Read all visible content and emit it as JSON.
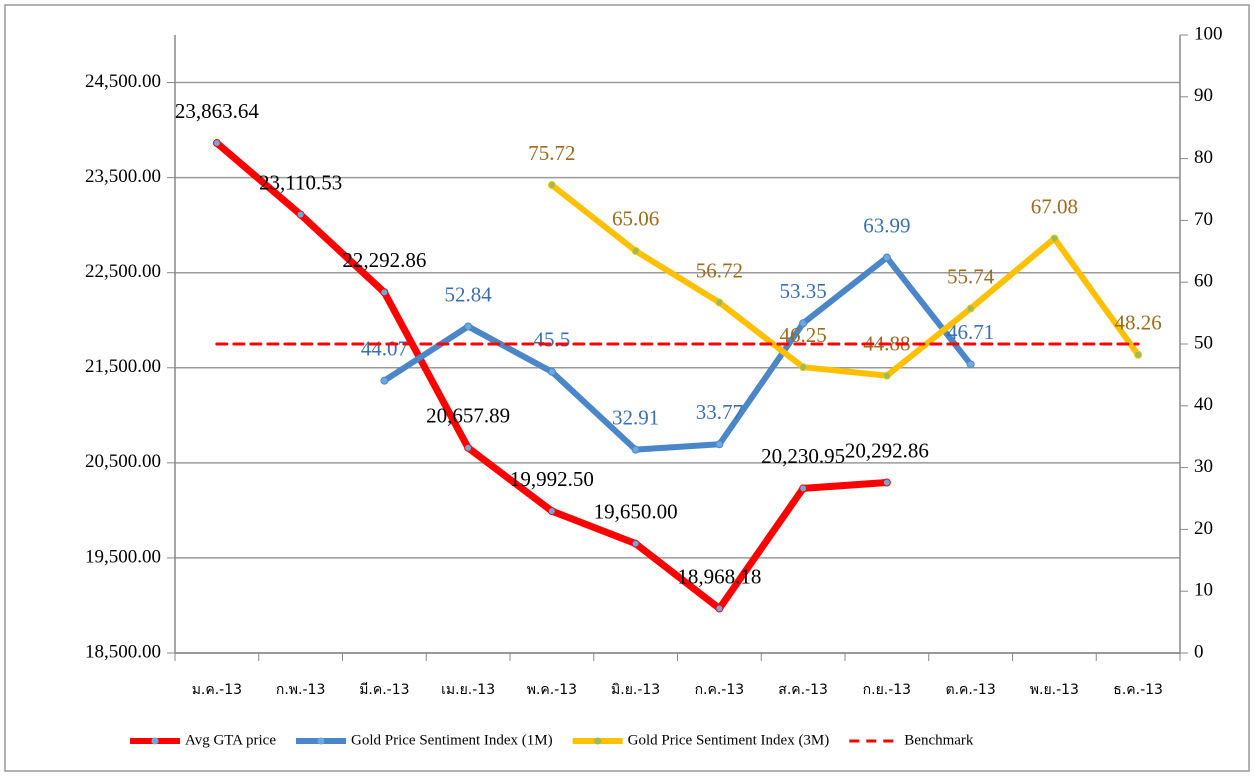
{
  "chart_data": {
    "type": "line",
    "categories": [
      "ม.ค.-13",
      "ก.พ.-13",
      "มี.ค.-13",
      "เม.ย.-13",
      "พ.ค.-13",
      "มิ.ย.-13",
      "ก.ค.-13",
      "ส.ค.-13",
      "ก.ย.-13",
      "ต.ค.-13",
      "พ.ย.-13",
      "ธ.ค.-13"
    ],
    "series": [
      {
        "name": "Avg GTA price",
        "color": "#ff0000",
        "label_color": "#000000",
        "values": [
          23863.64,
          23110.53,
          22292.86,
          20657.89,
          19992.5,
          19650.0,
          18968.18,
          20230.95,
          20292.86,
          null,
          null,
          null
        ],
        "value_labels": [
          "23,863.64",
          "23,110.53",
          "22,292.86",
          "20,657.89",
          "19,992.50",
          "19,650.00",
          "18,968.18",
          "20,230.95",
          "20,292.86",
          null,
          null,
          null
        ]
      },
      {
        "name": "Gold Price Sentiment Index (1M)",
        "color": "#4a86c8",
        "label_color": "#3a6fb5",
        "axis": "y2",
        "values": [
          null,
          null,
          44.07,
          52.84,
          45.5,
          32.91,
          33.77,
          53.35,
          63.99,
          46.71,
          null,
          null
        ]
      },
      {
        "name": "Gold Price Sentiment Index (3M)",
        "color": "#ffc000",
        "label_color": "#9c6b1f",
        "axis": "y2",
        "values": [
          null,
          null,
          null,
          null,
          75.72,
          65.06,
          56.72,
          46.25,
          44.88,
          55.74,
          67.08,
          48.26
        ]
      },
      {
        "name": "Benchmark",
        "color": "#ff0000",
        "axis": "y2",
        "dashed": true,
        "values": [
          50,
          50,
          50,
          50,
          50,
          50,
          50,
          50,
          50,
          50,
          50,
          50
        ]
      }
    ],
    "ylim": [
      18500,
      25000
    ],
    "yticks": [
      {
        "value": 18500,
        "label": "18,500.00"
      },
      {
        "value": 19500,
        "label": "19,500.00"
      },
      {
        "value": 20500,
        "label": "20,500.00"
      },
      {
        "value": 21500,
        "label": "21,500.00"
      },
      {
        "value": 22500,
        "label": "22,500.00"
      },
      {
        "value": 23500,
        "label": "23,500.00"
      },
      {
        "value": 24500,
        "label": "24,500.00"
      }
    ],
    "y2lim": [
      0,
      100
    ],
    "y2ticks": [
      0,
      10,
      20,
      30,
      40,
      50,
      60,
      70,
      80,
      90,
      100
    ],
    "grid": true,
    "legend": "bottom"
  }
}
